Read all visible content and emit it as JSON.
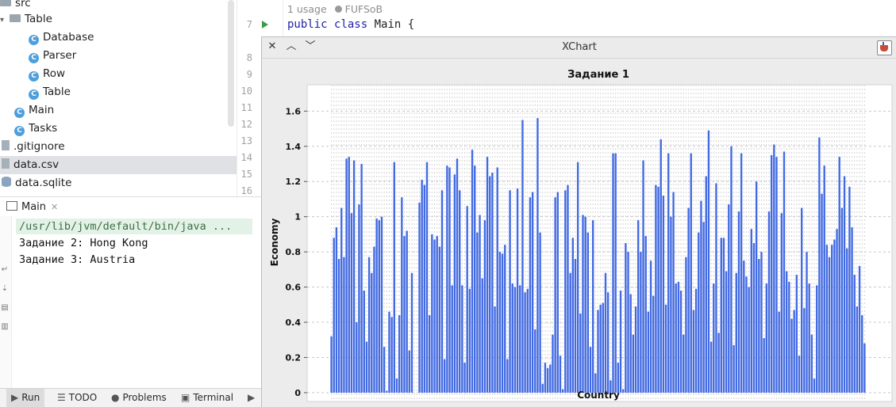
{
  "project_tree": {
    "items": [
      {
        "label": "src",
        "kind": "folder"
      },
      {
        "label": "Table",
        "kind": "package"
      },
      {
        "label": "Database",
        "kind": "class"
      },
      {
        "label": "Parser",
        "kind": "class"
      },
      {
        "label": "Row",
        "kind": "class"
      },
      {
        "label": "Table",
        "kind": "class"
      },
      {
        "label": "Main",
        "kind": "class-main"
      },
      {
        "label": "Tasks",
        "kind": "class"
      },
      {
        "label": ".gitignore",
        "kind": "file"
      },
      {
        "label": "data.csv",
        "kind": "file",
        "selected": true
      },
      {
        "label": "data.sqlite",
        "kind": "db"
      }
    ]
  },
  "editor": {
    "line_numbers": [
      "7",
      "8",
      "9",
      "10",
      "11",
      "12",
      "13",
      "14",
      "15",
      "16"
    ],
    "usage_hint": "1 usage",
    "author": "FUFSoB",
    "code_keyword_1": "public",
    "code_keyword_2": "class",
    "code_rest": "Main {"
  },
  "run_panel": {
    "tab_label": "Main",
    "console": [
      "/usr/lib/jvm/default/bin/java ...",
      "Задание 2: Hong Kong",
      "Задание 3: Austria"
    ]
  },
  "bottom_bar": {
    "run": "Run",
    "todo": "TODO",
    "problems": "Problems",
    "terminal": "Terminal"
  },
  "xchart_window": {
    "title": "XChart"
  },
  "chart_data": {
    "type": "bar",
    "title": "Задание 1",
    "xlabel": "Country",
    "ylabel": "Economy",
    "ylim": [
      -0.05,
      1.75
    ],
    "yticks": [
      "0",
      "0.2",
      "0.4",
      "0.6",
      "0.8",
      "1",
      "1.2",
      "1.4",
      "1.6"
    ],
    "grid": true,
    "legend": false,
    "bar_color": "#4169e1",
    "values": [
      0.32,
      0.88,
      0.94,
      0.76,
      1.05,
      0.77,
      1.33,
      1.34,
      1.02,
      1.32,
      0.4,
      1.07,
      1.3,
      0.58,
      0.29,
      0.77,
      0.68,
      0.83,
      0.99,
      0.98,
      1.0,
      0.26,
      0.01,
      0.46,
      0.43,
      1.31,
      0.08,
      0.44,
      1.11,
      0.89,
      0.92,
      0.24,
      0.68,
      0.0,
      0.0,
      1.08,
      1.21,
      1.18,
      1.31,
      0.44,
      0.9,
      0.87,
      0.89,
      0.83,
      1.15,
      0.19,
      1.29,
      1.28,
      0.61,
      1.24,
      1.33,
      1.15,
      0.61,
      0.17,
      1.06,
      0.59,
      1.38,
      1.29,
      0.91,
      1.01,
      0.65,
      0.98,
      1.34,
      1.23,
      1.25,
      0.49,
      1.28,
      0.8,
      0.79,
      0.84,
      0.19,
      1.15,
      0.62,
      0.6,
      1.16,
      0.61,
      1.55,
      0.57,
      0.59,
      1.11,
      1.14,
      0.36,
      1.56,
      0.91,
      0.05,
      0.17,
      0.14,
      0.16,
      0.33,
      1.11,
      1.14,
      0.21,
      0.02,
      1.15,
      1.18,
      0.68,
      0.88,
      0.76,
      1.31,
      0.45,
      1.01,
      1.0,
      0.91,
      0.26,
      0.98,
      0.11,
      0.47,
      0.5,
      0.51,
      0.68,
      0.57,
      0.07,
      1.36,
      1.36,
      0.17,
      0.58,
      0.02,
      0.85,
      0.8,
      0.56,
      0.33,
      0.49,
      0.98,
      0.8,
      1.32,
      0.89,
      0.46,
      0.75,
      0.55,
      1.18,
      1.17,
      1.44,
      1.12,
      0.5,
      1.36,
      1.0,
      1.14,
      0.62,
      0.63,
      0.58,
      0.33,
      0.77,
      1.05,
      1.36,
      0.47,
      0.59,
      0.91,
      1.09,
      0.97,
      1.23,
      1.49,
      0.29,
      0.62,
      1.19,
      0.34,
      0.88,
      0.88,
      0.69,
      1.07,
      1.4,
      0.27,
      0.68,
      1.03,
      1.36,
      0.75,
      0.66,
      0.6,
      0.93,
      0.85,
      1.2,
      0.76,
      0.8,
      0.31,
      0.62,
      1.03,
      1.35,
      1.41,
      1.34,
      0.46,
      1.02,
      1.37,
      0.69,
      0.63,
      0.42,
      0.47,
      0.67,
      0.21,
      1.05,
      0.48,
      0.8,
      0.62,
      0.33,
      0.08,
      0.61,
      1.45,
      1.13,
      1.29,
      0.84,
      0.77,
      0.84,
      0.87,
      0.93,
      1.34,
      1.05,
      1.23,
      0.82,
      1.17,
      0.94,
      0.67,
      0.49,
      0.72,
      0.44,
      0.28
    ]
  }
}
